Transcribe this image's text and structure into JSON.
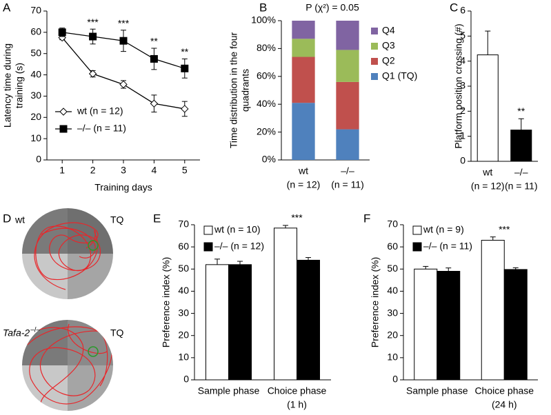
{
  "chart_data": [
    {
      "type": "line",
      "panel": "A",
      "ylabel": [
        "Latency time during",
        "training (s)"
      ],
      "xlabel": "Training days",
      "x": [
        1,
        2,
        3,
        4,
        5
      ],
      "xlim": [
        0.5,
        5.5
      ],
      "xticks": [
        1,
        2,
        3,
        4,
        5
      ],
      "ylim": [
        0,
        70
      ],
      "yticks": [
        0,
        10,
        20,
        30,
        40,
        50,
        60,
        70
      ],
      "series": [
        {
          "name": "wt (n = 12)",
          "color": "#000000",
          "marker": "diamond",
          "marker_fill": "#ffffff",
          "values": [
            57.5,
            40.5,
            35.5,
            26.5,
            24
          ],
          "errors": [
            1,
            1.5,
            1.8,
            4,
            3.5
          ]
        },
        {
          "name": "–/–  (n = 11)",
          "color": "#000000",
          "marker": "square",
          "marker_fill": "#000000",
          "values": [
            60,
            58,
            56,
            47.5,
            43
          ],
          "errors": [
            2,
            3.5,
            5,
            5,
            4.5
          ]
        }
      ],
      "annotations": [
        null,
        "***",
        "***",
        "**",
        "**"
      ]
    },
    {
      "type": "stacked_bar",
      "panel": "B",
      "title": "P (χ²) = 0.05",
      "ylabel": [
        "Time distribution in the four",
        "quadrants"
      ],
      "categories": [
        "wt",
        "–/–"
      ],
      "category_sublabels": [
        "(n = 12)",
        "(n = 11)"
      ],
      "ylim": [
        0,
        100
      ],
      "yticks": [
        {
          "value": 0,
          "label": "0%"
        },
        {
          "value": 20,
          "label": "20%"
        },
        {
          "value": 40,
          "label": "40%"
        },
        {
          "value": 60,
          "label": "60%"
        },
        {
          "value": 80,
          "label": "80%"
        },
        {
          "value": 100,
          "label": "100%"
        }
      ],
      "series": [
        {
          "name": "Q1 (TQ)",
          "color": "#4f81bd",
          "values": [
            41,
            22
          ]
        },
        {
          "name": "Q2",
          "color": "#c0504d",
          "values": [
            33,
            34
          ]
        },
        {
          "name": "Q3",
          "color": "#9bbb59",
          "values": [
            13,
            23
          ]
        },
        {
          "name": "Q4",
          "color": "#8064a2",
          "values": [
            13,
            21
          ]
        }
      ]
    },
    {
      "type": "bar",
      "panel": "C",
      "ylabel": [
        "Platform position crossing (#)"
      ],
      "categories": [
        "wt",
        "–/–"
      ],
      "category_sublabels": [
        "(n = 12)",
        "(n = 11)"
      ],
      "ylim": [
        0,
        6
      ],
      "yticks": [
        0,
        1,
        2,
        3,
        4,
        5,
        6
      ],
      "values": [
        4.25,
        1.25
      ],
      "errors": [
        0.95,
        0.45
      ],
      "colors": [
        "#ffffff",
        "#000000"
      ],
      "annotations": [
        null,
        "**"
      ]
    },
    {
      "type": "image",
      "panel": "D",
      "images": [
        {
          "genotype": "wt",
          "superscript": null,
          "quadrant_label": "TQ"
        },
        {
          "genotype": "Tafa-2",
          "superscript": "–/–",
          "quadrant_label": "TQ"
        }
      ]
    },
    {
      "type": "grouped_bar",
      "panel": "E",
      "ylabel": [
        "Preference index (%)"
      ],
      "categories": [
        "Sample phase",
        "Choice phase"
      ],
      "category_sublabels": [
        null,
        "(1 h)"
      ],
      "ylim": [
        0,
        70
      ],
      "yticks": [
        0,
        10,
        20,
        30,
        40,
        50,
        60,
        70
      ],
      "series": [
        {
          "name": "wt (n = 10)",
          "color": "#ffffff",
          "values": [
            52,
            68.5
          ],
          "errors": [
            2.5,
            1.2
          ]
        },
        {
          "name": "–/– (n = 12)",
          "color": "#000000",
          "values": [
            52,
            54
          ],
          "errors": [
            1.5,
            1.2
          ]
        }
      ],
      "annotations": [
        null,
        "***"
      ]
    },
    {
      "type": "grouped_bar",
      "panel": "F",
      "ylabel": [
        "Preference index (%)"
      ],
      "categories": [
        "Sample phase",
        "Choice phase"
      ],
      "category_sublabels": [
        null,
        "(24 h)"
      ],
      "ylim": [
        0,
        70
      ],
      "yticks": [
        0,
        10,
        20,
        30,
        40,
        50,
        60,
        70
      ],
      "series": [
        {
          "name": "wt (n = 9)",
          "color": "#ffffff",
          "values": [
            50,
            63
          ],
          "errors": [
            1.2,
            1.5
          ]
        },
        {
          "name": "–/– (n = 11)",
          "color": "#000000",
          "values": [
            49,
            49.8
          ],
          "errors": [
            1.5,
            0.8
          ]
        }
      ],
      "annotations": [
        null,
        "***"
      ]
    }
  ]
}
